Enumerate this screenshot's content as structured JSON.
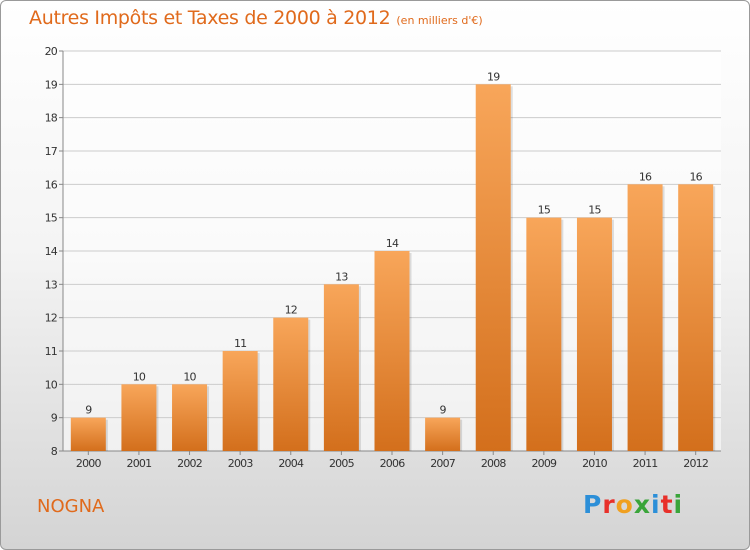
{
  "header": {
    "title": "Autres Impôts et Taxes de 2000 à 2012",
    "subtitle": "(en milliers d'€)"
  },
  "footer": {
    "town": "NOGNA",
    "logo_letters": [
      "P",
      "r",
      "o",
      "x",
      "i",
      "t",
      "i"
    ]
  },
  "colors": {
    "title": "#e06a1c",
    "bar_top": "#f8a65a",
    "bar_bottom": "#d36f1c",
    "grid": "#cccccc",
    "logo": [
      "#2c8fd8",
      "#e8302a",
      "#f0a020",
      "#3aa53a",
      "#2c8fd8",
      "#e8302a",
      "#3aa53a"
    ]
  },
  "chart_data": {
    "type": "bar",
    "title": "Autres Impôts et Taxes de 2000 à 2012",
    "subtitle": "(en milliers d'€)",
    "categories": [
      "2000",
      "2001",
      "2002",
      "2003",
      "2004",
      "2005",
      "2006",
      "2007",
      "2008",
      "2009",
      "2010",
      "2011",
      "2012"
    ],
    "values": [
      9,
      10,
      10,
      11,
      12,
      13,
      14,
      9,
      19,
      15,
      15,
      16,
      16
    ],
    "ylim": [
      8,
      20
    ],
    "yticks": [
      8,
      9,
      10,
      11,
      12,
      13,
      14,
      15,
      16,
      17,
      18,
      19,
      20
    ],
    "grid": true,
    "legend": "none"
  }
}
